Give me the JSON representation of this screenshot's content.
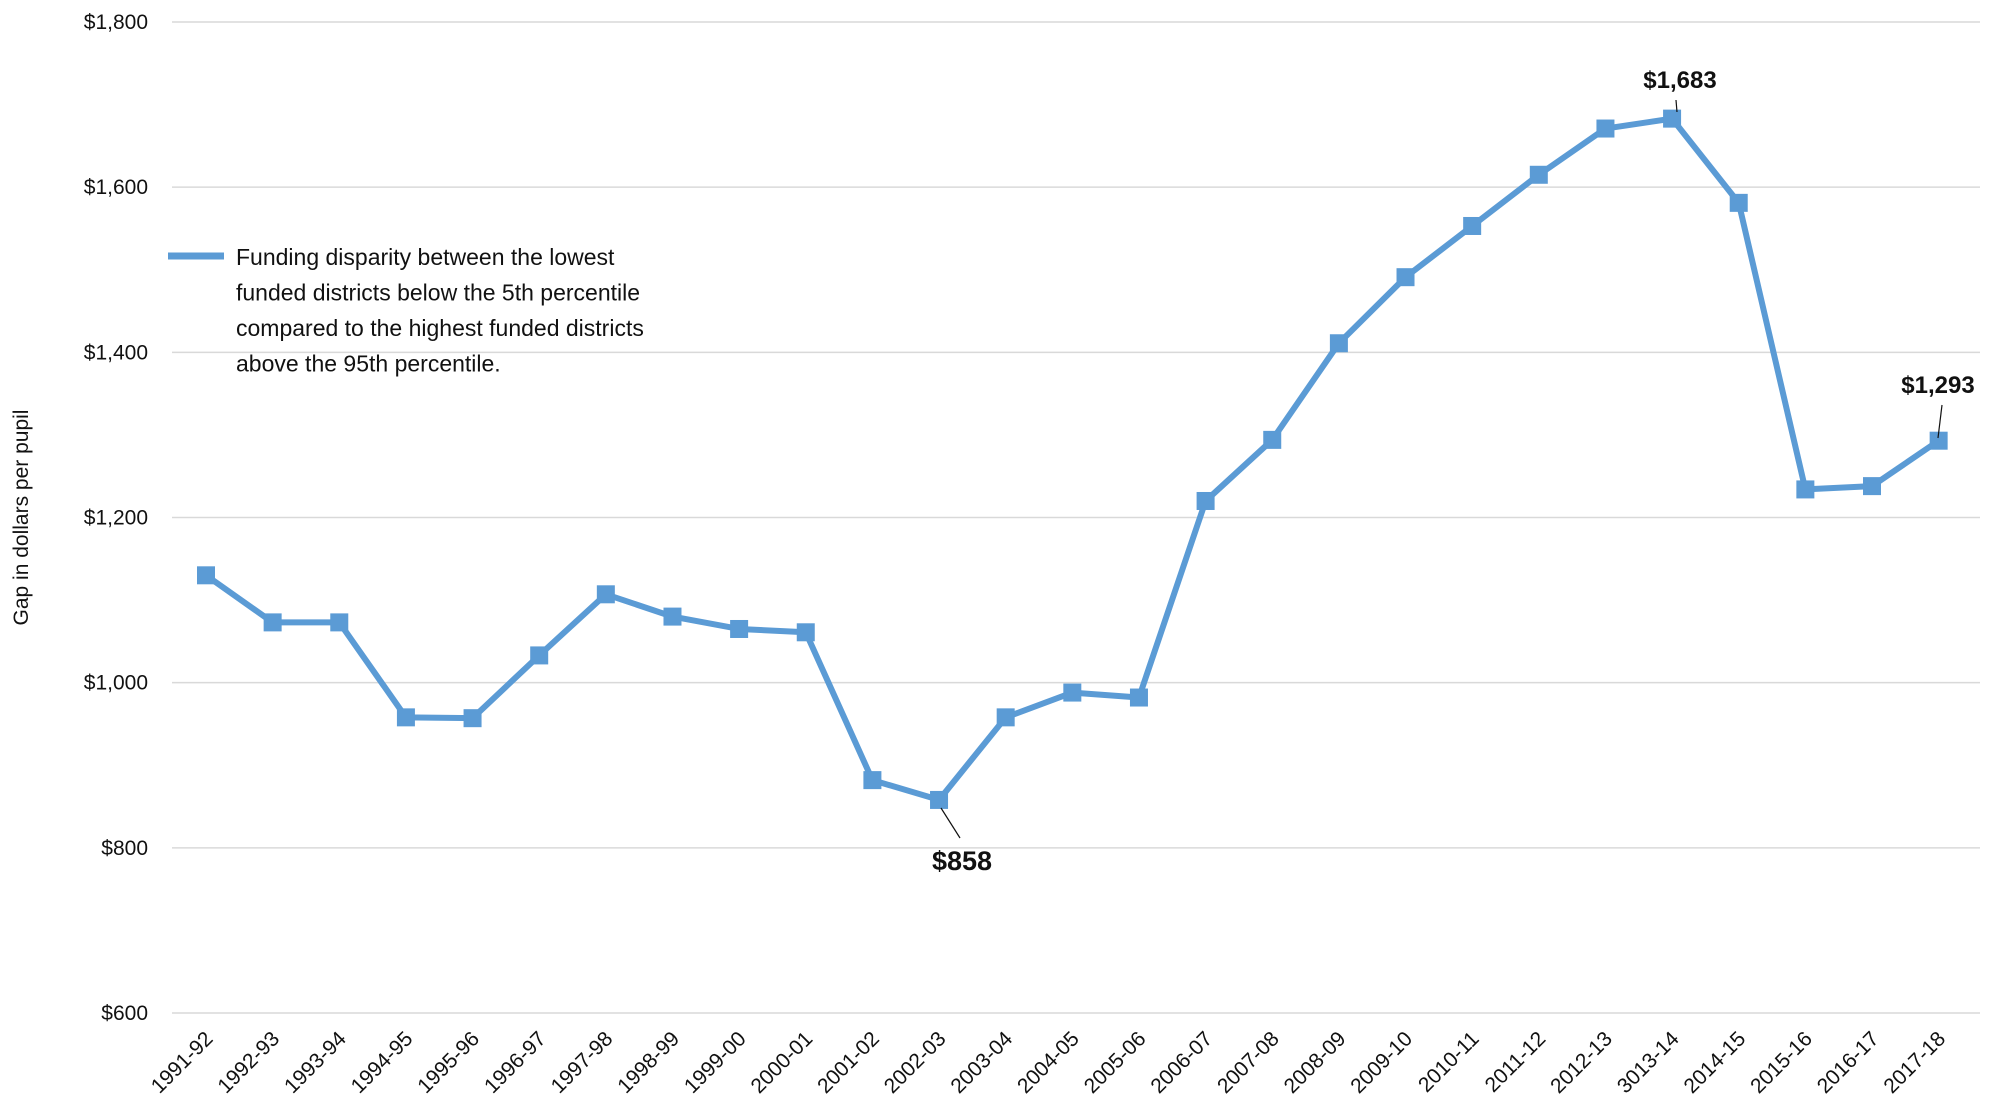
{
  "chart_data": {
    "type": "line",
    "title": "",
    "xlabel": "",
    "ylabel": "Gap in dollars per pupil",
    "ylim": [
      600,
      1800
    ],
    "yticks": [
      600,
      800,
      1000,
      1200,
      1400,
      1600,
      1800
    ],
    "ytick_labels": [
      "$600",
      "$800",
      "$1,000",
      "$1,200",
      "$1,400",
      "$1,600",
      "$1,800"
    ],
    "grid": true,
    "legend_position": "upper-left",
    "categories": [
      "1991-92",
      "1992-93",
      "1993-94",
      "1994-95",
      "1995-96",
      "1996-97",
      "1997-98",
      "1998-99",
      "1999-00",
      "2000-01",
      "2001-02",
      "2002-03",
      "2003-04",
      "2004-05",
      "2005-06",
      "2006-07",
      "2007-08",
      "2008-09",
      "2009-10",
      "2010-11",
      "2011-12",
      "2012-13",
      "3013-14",
      "2014-15",
      "2015-16",
      "2016-17",
      "2017-18"
    ],
    "series": [
      {
        "legend_lines": [
          "Funding disparity between the lowest",
          "funded districts below the 5th percentile",
          "compared to the highest funded districts",
          "above the 95th percentile."
        ],
        "color": "#5B9BD5",
        "values": [
          1130,
          1073,
          1073,
          958,
          957,
          1033,
          1107,
          1080,
          1065,
          1061,
          882,
          858,
          958,
          988,
          982,
          1220,
          1294,
          1411,
          1491,
          1553,
          1615,
          1671,
          1683,
          1581,
          1234,
          1238,
          1293
        ]
      }
    ],
    "annotations": [
      {
        "index": 11,
        "text": "$858"
      },
      {
        "index": 22,
        "text": "$1,683"
      },
      {
        "index": 26,
        "text": "$1,293"
      }
    ]
  }
}
